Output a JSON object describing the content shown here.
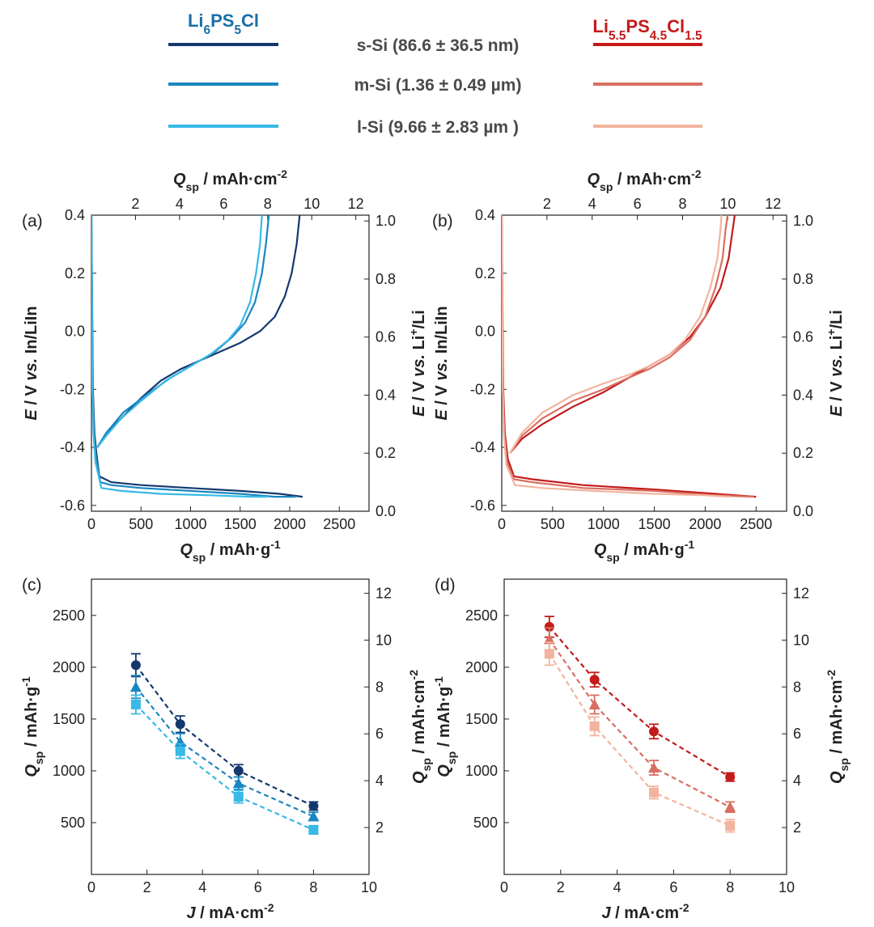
{
  "legend": {
    "left_header": "Li6PS5Cl",
    "right_header": "Li5.5PS4.5Cl1.5",
    "sizes": [
      "s-Si (86.6 ± 36.5 nm)",
      "m-Si (1.36 ± 0.49 µm)",
      "l-Si (9.66 ± 2.83 µm )"
    ]
  },
  "colors": {
    "blue": [
      "#14386e",
      "#1a86c1",
      "#38b9e6"
    ],
    "red": [
      "#c41a1a",
      "#d96e62",
      "#f2b49e"
    ],
    "left_header": "#1a6fa6",
    "right_header": "#c41a1a"
  },
  "chart_data": [
    {
      "type": "line",
      "panel": "(a)",
      "title": "",
      "xlabel": "Q_sp / mAh·g⁻¹",
      "x2label": "Q_sp / mAh·cm⁻²",
      "ylabel": "E / V vs. In/LiIn",
      "y2label": "E / V vs. Li⁺/Li",
      "xlim": [
        0,
        2800
      ],
      "ylim": [
        -0.62,
        0.4
      ],
      "x2lim": [
        0,
        12.6
      ],
      "y2lim": [
        0.0,
        1.02
      ],
      "xticks": [
        0,
        500,
        1000,
        1500,
        2000,
        2500
      ],
      "x2ticks": [
        2,
        4,
        6,
        8,
        10,
        12
      ],
      "yticks": [
        -0.6,
        -0.4,
        -0.2,
        0.0,
        0.2,
        0.4
      ],
      "y2ticks": [
        0.0,
        0.2,
        0.4,
        0.6,
        0.8,
        1.0
      ],
      "series": [
        {
          "name": "s-Si (86.6 ± 36.5 nm)",
          "discharge": [
            [
              0,
              0.4
            ],
            [
              5,
              0.2
            ],
            [
              15,
              -0.2
            ],
            [
              30,
              -0.35
            ],
            [
              50,
              -0.42
            ],
            [
              80,
              -0.5
            ],
            [
              200,
              -0.52
            ],
            [
              500,
              -0.53
            ],
            [
              1000,
              -0.54
            ],
            [
              1500,
              -0.55
            ],
            [
              1900,
              -0.56
            ],
            [
              2130,
              -0.57
            ]
          ],
          "charge": [
            [
              60,
              -0.4
            ],
            [
              150,
              -0.35
            ],
            [
              300,
              -0.3
            ],
            [
              500,
              -0.23
            ],
            [
              700,
              -0.17
            ],
            [
              900,
              -0.13
            ],
            [
              1100,
              -0.1
            ],
            [
              1300,
              -0.07
            ],
            [
              1500,
              -0.04
            ],
            [
              1700,
              0.0
            ],
            [
              1850,
              0.05
            ],
            [
              1950,
              0.12
            ],
            [
              2020,
              0.2
            ],
            [
              2070,
              0.3
            ],
            [
              2100,
              0.4
            ]
          ]
        },
        {
          "name": "m-Si (1.36 ± 0.49 µm)",
          "discharge": [
            [
              0,
              0.4
            ],
            [
              4,
              0.2
            ],
            [
              12,
              -0.2
            ],
            [
              25,
              -0.35
            ],
            [
              45,
              -0.43
            ],
            [
              90,
              -0.52
            ],
            [
              200,
              -0.53
            ],
            [
              500,
              -0.54
            ],
            [
              1000,
              -0.55
            ],
            [
              1500,
              -0.56
            ],
            [
              1850,
              -0.57
            ],
            [
              2060,
              -0.57
            ]
          ],
          "charge": [
            [
              60,
              -0.4
            ],
            [
              150,
              -0.35
            ],
            [
              320,
              -0.28
            ],
            [
              550,
              -0.22
            ],
            [
              800,
              -0.16
            ],
            [
              1050,
              -0.11
            ],
            [
              1250,
              -0.07
            ],
            [
              1420,
              -0.02
            ],
            [
              1550,
              0.03
            ],
            [
              1650,
              0.1
            ],
            [
              1720,
              0.2
            ],
            [
              1760,
              0.3
            ],
            [
              1790,
              0.4
            ]
          ]
        },
        {
          "name": "l-Si (9.66 ± 2.83 µm )",
          "discharge": [
            [
              0,
              0.4
            ],
            [
              3,
              0.2
            ],
            [
              10,
              -0.2
            ],
            [
              20,
              -0.35
            ],
            [
              40,
              -0.45
            ],
            [
              100,
              -0.54
            ],
            [
              300,
              -0.55
            ],
            [
              700,
              -0.56
            ],
            [
              1200,
              -0.565
            ],
            [
              1600,
              -0.57
            ],
            [
              1780,
              -0.57
            ]
          ],
          "charge": [
            [
              60,
              -0.4
            ],
            [
              150,
              -0.36
            ],
            [
              300,
              -0.3
            ],
            [
              500,
              -0.24
            ],
            [
              750,
              -0.17
            ],
            [
              1000,
              -0.12
            ],
            [
              1200,
              -0.08
            ],
            [
              1380,
              -0.03
            ],
            [
              1500,
              0.02
            ],
            [
              1600,
              0.1
            ],
            [
              1660,
              0.2
            ],
            [
              1700,
              0.3
            ],
            [
              1720,
              0.4
            ]
          ]
        }
      ]
    },
    {
      "type": "line",
      "panel": "(b)",
      "title": "",
      "xlabel": "Q_sp / mAh·g⁻¹",
      "x2label": "Q_sp / mAh·cm⁻²",
      "ylabel": "E / V vs. In/LiIn",
      "y2label": "E / V vs. Li⁺/Li",
      "xlim": [
        0,
        2800
      ],
      "ylim": [
        -0.62,
        0.4
      ],
      "x2lim": [
        0,
        12.6
      ],
      "y2lim": [
        0.0,
        1.02
      ],
      "xticks": [
        0,
        500,
        1000,
        1500,
        2000,
        2500
      ],
      "x2ticks": [
        2,
        4,
        6,
        8,
        10,
        12
      ],
      "yticks": [
        -0.6,
        -0.4,
        -0.2,
        0.0,
        0.2,
        0.4
      ],
      "y2ticks": [
        0.0,
        0.2,
        0.4,
        0.6,
        0.8,
        1.0
      ],
      "series": [
        {
          "name": "s-Si (86.6 ± 36.5 nm)",
          "discharge": [
            [
              0,
              0.4
            ],
            [
              5,
              0.2
            ],
            [
              15,
              -0.2
            ],
            [
              30,
              -0.35
            ],
            [
              60,
              -0.44
            ],
            [
              120,
              -0.5
            ],
            [
              300,
              -0.51
            ],
            [
              800,
              -0.53
            ],
            [
              1500,
              -0.545
            ],
            [
              2100,
              -0.56
            ],
            [
              2500,
              -0.57
            ]
          ],
          "charge": [
            [
              80,
              -0.42
            ],
            [
              200,
              -0.37
            ],
            [
              400,
              -0.32
            ],
            [
              700,
              -0.26
            ],
            [
              1000,
              -0.21
            ],
            [
              1250,
              -0.16
            ],
            [
              1450,
              -0.12
            ],
            [
              1650,
              -0.08
            ],
            [
              1850,
              -0.02
            ],
            [
              2000,
              0.05
            ],
            [
              2150,
              0.15
            ],
            [
              2230,
              0.25
            ],
            [
              2270,
              0.35
            ],
            [
              2290,
              0.4
            ]
          ]
        },
        {
          "name": "m-Si (1.36 ± 0.49 µm)",
          "discharge": [
            [
              0,
              0.4
            ],
            [
              4,
              0.2
            ],
            [
              12,
              -0.2
            ],
            [
              25,
              -0.35
            ],
            [
              50,
              -0.45
            ],
            [
              120,
              -0.51
            ],
            [
              300,
              -0.52
            ],
            [
              800,
              -0.54
            ],
            [
              1500,
              -0.55
            ],
            [
              2100,
              -0.565
            ],
            [
              2480,
              -0.57
            ]
          ],
          "charge": [
            [
              80,
              -0.42
            ],
            [
              200,
              -0.36
            ],
            [
              400,
              -0.3
            ],
            [
              700,
              -0.24
            ],
            [
              1000,
              -0.2
            ],
            [
              1250,
              -0.16
            ],
            [
              1450,
              -0.13
            ],
            [
              1650,
              -0.09
            ],
            [
              1850,
              -0.03
            ],
            [
              2000,
              0.05
            ],
            [
              2100,
              0.15
            ],
            [
              2170,
              0.25
            ],
            [
              2200,
              0.35
            ],
            [
              2220,
              0.4
            ]
          ]
        },
        {
          "name": "l-Si (9.66 ± 2.83 µm )",
          "discharge": [
            [
              0,
              0.4
            ],
            [
              3,
              0.2
            ],
            [
              10,
              -0.2
            ],
            [
              20,
              -0.35
            ],
            [
              45,
              -0.46
            ],
            [
              130,
              -0.53
            ],
            [
              400,
              -0.54
            ],
            [
              900,
              -0.55
            ],
            [
              1500,
              -0.56
            ],
            [
              2000,
              -0.565
            ],
            [
              2250,
              -0.57
            ]
          ],
          "charge": [
            [
              80,
              -0.42
            ],
            [
              200,
              -0.35
            ],
            [
              400,
              -0.28
            ],
            [
              700,
              -0.22
            ],
            [
              1000,
              -0.18
            ],
            [
              1250,
              -0.15
            ],
            [
              1450,
              -0.12
            ],
            [
              1650,
              -0.08
            ],
            [
              1800,
              -0.03
            ],
            [
              1950,
              0.05
            ],
            [
              2050,
              0.15
            ],
            [
              2120,
              0.25
            ],
            [
              2150,
              0.35
            ],
            [
              2160,
              0.4
            ]
          ]
        }
      ]
    },
    {
      "type": "scatter",
      "panel": "(c)",
      "title": "",
      "xlabel": "J / mA·cm⁻²",
      "ylabel": "Q_sp / mAh·g⁻¹",
      "y2label": "Q_sp / mAh·cm⁻²",
      "xlim": [
        0,
        10
      ],
      "ylim": [
        0,
        2850
      ],
      "y2lim": [
        0,
        12.6
      ],
      "xticks": [
        0,
        2,
        4,
        6,
        8,
        10
      ],
      "yticks": [
        500,
        1000,
        1500,
        2000,
        2500
      ],
      "y2ticks": [
        2,
        4,
        6,
        8,
        10,
        12
      ],
      "x": [
        1.6,
        3.2,
        5.3,
        8.0
      ],
      "series": [
        {
          "name": "s-Si (86.6 ± 36.5 nm)",
          "marker": "circle",
          "values": [
            2020,
            1450,
            1000,
            660
          ],
          "errors": [
            110,
            80,
            60,
            40
          ]
        },
        {
          "name": "m-Si (1.36 ± 0.49 µm)",
          "marker": "triangle",
          "values": [
            1810,
            1280,
            880,
            560
          ],
          "errors": [
            110,
            80,
            60,
            40
          ]
        },
        {
          "name": "l-Si (9.66 ± 2.83 µm )",
          "marker": "square",
          "values": [
            1640,
            1190,
            750,
            430
          ],
          "errors": [
            90,
            70,
            60,
            40
          ]
        }
      ]
    },
    {
      "type": "scatter",
      "panel": "(d)",
      "title": "",
      "xlabel": "J / mA·cm⁻²",
      "ylabel": "Q_sp / mAh·g⁻¹",
      "y2label": "Q_sp / mAh·cm⁻²",
      "xlim": [
        0,
        10
      ],
      "ylim": [
        0,
        2850
      ],
      "y2lim": [
        0,
        12.6
      ],
      "xticks": [
        0,
        2,
        4,
        6,
        8,
        10
      ],
      "yticks": [
        500,
        1000,
        1500,
        2000,
        2500
      ],
      "y2ticks": [
        2,
        4,
        6,
        8,
        10,
        12
      ],
      "x": [
        1.6,
        3.2,
        5.3,
        8.0
      ],
      "series": [
        {
          "name": "s-Si (86.6 ± 36.5 nm)",
          "marker": "circle",
          "values": [
            2390,
            1880,
            1380,
            940
          ],
          "errors": [
            100,
            70,
            70,
            40
          ]
        },
        {
          "name": "m-Si (1.36 ± 0.49 µm)",
          "marker": "triangle",
          "values": [
            2270,
            1640,
            1030,
            650
          ],
          "errors": [
            110,
            90,
            70,
            50
          ]
        },
        {
          "name": "l-Si (9.66 ± 2.83 µm )",
          "marker": "square",
          "values": [
            2130,
            1430,
            790,
            470
          ],
          "errors": [
            110,
            90,
            60,
            60
          ]
        }
      ]
    }
  ]
}
